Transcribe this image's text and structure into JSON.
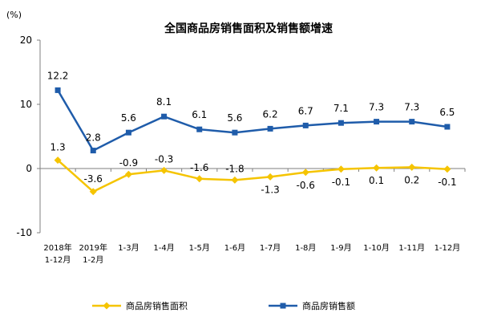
{
  "chart_data": {
    "type": "line",
    "title": "全国商品房销售面积及销售额增速",
    "unit": "(%)",
    "ylim": [
      -10,
      20
    ],
    "yticks": [
      "20",
      "10",
      "0",
      "-10"
    ],
    "grid": false,
    "legend_position": "bottom",
    "categories": [
      [
        "2018年",
        "1-12月"
      ],
      [
        "2019年",
        "1-2月"
      ],
      [
        "1-3月"
      ],
      [
        "1-4月"
      ],
      [
        "1-5月"
      ],
      [
        "1-6月"
      ],
      [
        "1-7月"
      ],
      [
        "1-8月"
      ],
      [
        "1-9月"
      ],
      [
        "1-10月"
      ],
      [
        "1-11月"
      ],
      [
        "1-12月"
      ]
    ],
    "series": [
      {
        "name": "商品房销售面积",
        "color": "#F5C400",
        "marker": "diamond",
        "values": [
          1.3,
          -3.6,
          -0.9,
          -0.3,
          -1.6,
          -1.8,
          -1.3,
          -0.6,
          -0.1,
          0.1,
          0.2,
          -0.1
        ],
        "labels": [
          "1.3",
          "-3.6",
          "-0.9",
          "-0.3",
          "-1.6",
          "-1.8",
          "-1.3",
          "-0.6",
          "-0.1",
          "0.1",
          "0.2",
          "-0.1"
        ]
      },
      {
        "name": "商品房销售额",
        "color": "#1F5CAA",
        "marker": "square",
        "values": [
          12.2,
          2.8,
          5.6,
          8.1,
          6.1,
          5.6,
          6.2,
          6.7,
          7.1,
          7.3,
          7.3,
          6.5
        ],
        "labels": [
          "12.2",
          "2.8",
          "5.6",
          "8.1",
          "6.1",
          "5.6",
          "6.2",
          "6.7",
          "7.1",
          "7.3",
          "7.3",
          "6.5"
        ]
      }
    ]
  }
}
